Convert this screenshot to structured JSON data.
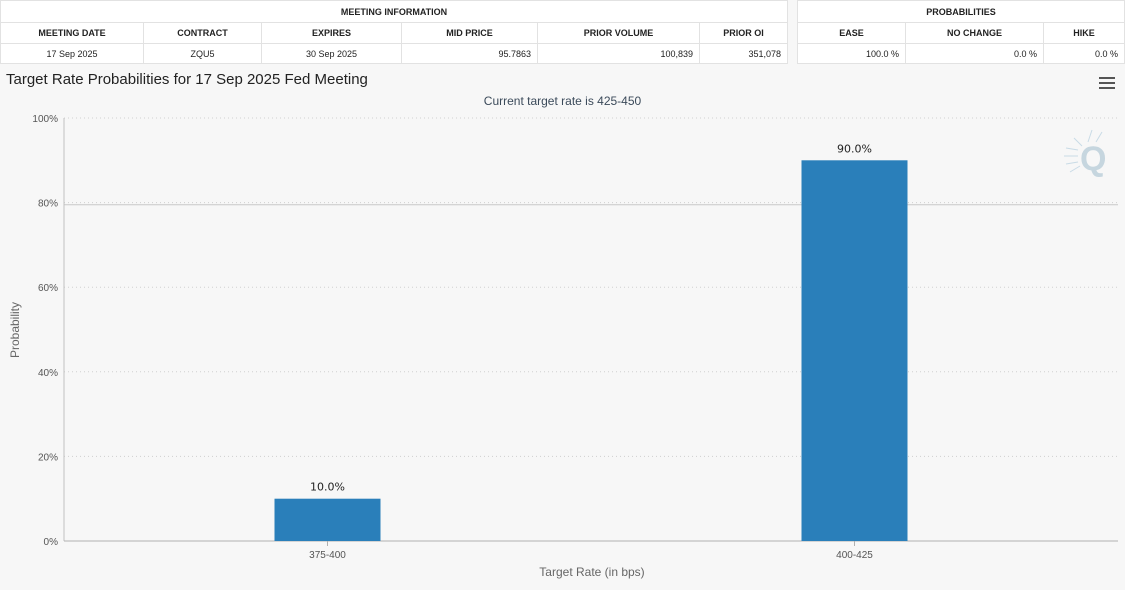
{
  "meeting_info": {
    "section_title": "MEETING INFORMATION",
    "headers": [
      "MEETING DATE",
      "CONTRACT",
      "EXPIRES",
      "MID PRICE",
      "PRIOR VOLUME",
      "PRIOR OI"
    ],
    "row": [
      "17 Sep 2025",
      "ZQU5",
      "30 Sep 2025",
      "95.7863",
      "100,839",
      "351,078"
    ]
  },
  "probabilities": {
    "section_title": "PROBABILITIES",
    "headers": [
      "EASE",
      "NO CHANGE",
      "HIKE"
    ],
    "row": [
      "100.0 %",
      "0.0 %",
      "0.0 %"
    ]
  },
  "chart_data": {
    "type": "bar",
    "title": "Target Rate Probabilities for 17 Sep 2025 Fed Meeting",
    "subtitle": "Current target rate is 425-450",
    "xlabel": "Target Rate (in bps)",
    "ylabel": "Probability",
    "categories": [
      "375-400",
      "400-425"
    ],
    "values": [
      10.0,
      90.0
    ],
    "data_labels": [
      "10.0%",
      "90.0%"
    ],
    "yticks": [
      "0%",
      "20%",
      "40%",
      "60%",
      "80%",
      "100%"
    ],
    "ylim": [
      0,
      100
    ],
    "grid": true,
    "bar_color": "#2a7fba",
    "legend": "none"
  },
  "icons": {
    "menu": "hamburger-menu-icon",
    "watermark": "q-logo-icon"
  }
}
